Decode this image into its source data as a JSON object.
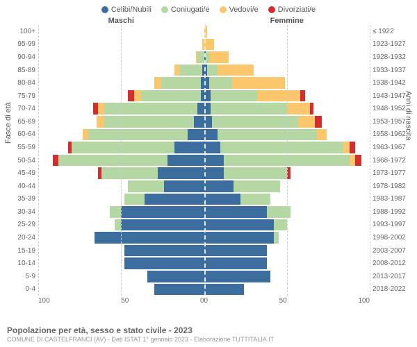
{
  "legend": [
    {
      "label": "Celibi/Nubili",
      "color": "#3b6e9e"
    },
    {
      "label": "Coniugati/e",
      "color": "#b5d7a4"
    },
    {
      "label": "Vedovi/e",
      "color": "#fcc66d"
    },
    {
      "label": "Divorziati/e",
      "color": "#d32d2d"
    }
  ],
  "header_male": "Maschi",
  "header_female": "Femmine",
  "y_left_title": "Fasce di età",
  "y_right_title": "Anni di nascita",
  "x_ticks_male": [
    "100",
    "50",
    "0"
  ],
  "x_ticks_female": [
    "0",
    "50",
    "100"
  ],
  "x_max": 100,
  "age_groups": [
    "100+",
    "95-99",
    "90-94",
    "85-89",
    "80-84",
    "75-79",
    "70-74",
    "65-69",
    "60-64",
    "55-59",
    "50-54",
    "45-49",
    "40-44",
    "35-39",
    "30-34",
    "25-29",
    "20-24",
    "15-19",
    "10-14",
    "5-9",
    "0-4"
  ],
  "birth_years": [
    "≤ 1922",
    "1923-1927",
    "1928-1932",
    "1933-1937",
    "1938-1942",
    "1943-1947",
    "1948-1952",
    "1953-1957",
    "1958-1962",
    "1963-1967",
    "1968-1972",
    "1973-1977",
    "1978-1982",
    "1983-1987",
    "1988-1992",
    "1993-1997",
    "1998-2002",
    "2003-2007",
    "2008-2012",
    "2013-2017",
    "2018-2022"
  ],
  "male": [
    {
      "celibi": 0,
      "coniugati": 0,
      "vedovi": 0,
      "divorziati": 0
    },
    {
      "celibi": 0,
      "coniugati": 0,
      "vedovi": 1,
      "divorziati": 0
    },
    {
      "celibi": 0,
      "coniugati": 4,
      "vedovi": 1,
      "divorziati": 0
    },
    {
      "celibi": 1,
      "coniugati": 14,
      "vedovi": 3,
      "divorziati": 0
    },
    {
      "celibi": 2,
      "coniugati": 24,
      "vedovi": 4,
      "divorziati": 0
    },
    {
      "celibi": 2,
      "coniugati": 36,
      "vedovi": 4,
      "divorziati": 4
    },
    {
      "celibi": 4,
      "coniugati": 56,
      "vedovi": 4,
      "divorziati": 3
    },
    {
      "celibi": 6,
      "coniugati": 54,
      "vedovi": 5,
      "divorziati": 0
    },
    {
      "celibi": 10,
      "coniugati": 60,
      "vedovi": 3,
      "divorziati": 0
    },
    {
      "celibi": 18,
      "coniugati": 62,
      "vedovi": 0,
      "divorziati": 2
    },
    {
      "celibi": 22,
      "coniugati": 66,
      "vedovi": 0,
      "divorziati": 3
    },
    {
      "celibi": 28,
      "coniugati": 34,
      "vedovi": 0,
      "divorziati": 2
    },
    {
      "celibi": 24,
      "coniugati": 22,
      "vedovi": 0,
      "divorziati": 0
    },
    {
      "celibi": 36,
      "coniugati": 12,
      "vedovi": 0,
      "divorziati": 0
    },
    {
      "celibi": 50,
      "coniugati": 7,
      "vedovi": 0,
      "divorziati": 0
    },
    {
      "celibi": 50,
      "coniugati": 4,
      "vedovi": 0,
      "divorziati": 0
    },
    {
      "celibi": 66,
      "coniugati": 0,
      "vedovi": 0,
      "divorziati": 0
    },
    {
      "celibi": 48,
      "coniugati": 0,
      "vedovi": 0,
      "divorziati": 0
    },
    {
      "celibi": 48,
      "coniugati": 0,
      "vedovi": 0,
      "divorziati": 0
    },
    {
      "celibi": 34,
      "coniugati": 0,
      "vedovi": 0,
      "divorziati": 0
    },
    {
      "celibi": 30,
      "coniugati": 0,
      "vedovi": 0,
      "divorziati": 0
    }
  ],
  "female": [
    {
      "celibi": 0,
      "coniugati": 0,
      "vedovi": 2,
      "divorziati": 0
    },
    {
      "celibi": 0,
      "coniugati": 0,
      "vedovi": 6,
      "divorziati": 0
    },
    {
      "celibi": 1,
      "coniugati": 2,
      "vedovi": 12,
      "divorziati": 0
    },
    {
      "celibi": 2,
      "coniugati": 6,
      "vedovi": 22,
      "divorziati": 0
    },
    {
      "celibi": 3,
      "coniugati": 14,
      "vedovi": 32,
      "divorziati": 0
    },
    {
      "celibi": 4,
      "coniugati": 28,
      "vedovi": 26,
      "divorziati": 3
    },
    {
      "celibi": 4,
      "coniugati": 46,
      "vedovi": 14,
      "divorziati": 2
    },
    {
      "celibi": 5,
      "coniugati": 52,
      "vedovi": 10,
      "divorziati": 4
    },
    {
      "celibi": 8,
      "coniugati": 60,
      "vedovi": 6,
      "divorziati": 0
    },
    {
      "celibi": 10,
      "coniugati": 74,
      "vedovi": 4,
      "divorziati": 3
    },
    {
      "celibi": 12,
      "coniugati": 76,
      "vedovi": 3,
      "divorziati": 4
    },
    {
      "celibi": 12,
      "coniugati": 38,
      "vedovi": 0,
      "divorziati": 2
    },
    {
      "celibi": 18,
      "coniugati": 28,
      "vedovi": 0,
      "divorziati": 0
    },
    {
      "celibi": 22,
      "coniugati": 18,
      "vedovi": 0,
      "divorziati": 0
    },
    {
      "celibi": 38,
      "coniugati": 14,
      "vedovi": 0,
      "divorziati": 0
    },
    {
      "celibi": 42,
      "coniugati": 8,
      "vedovi": 0,
      "divorziati": 0
    },
    {
      "celibi": 42,
      "coniugati": 3,
      "vedovi": 0,
      "divorziati": 0
    },
    {
      "celibi": 38,
      "coniugati": 0,
      "vedovi": 0,
      "divorziati": 0
    },
    {
      "celibi": 38,
      "coniugati": 0,
      "vedovi": 0,
      "divorziati": 0
    },
    {
      "celibi": 40,
      "coniugati": 0,
      "vedovi": 0,
      "divorziati": 0
    },
    {
      "celibi": 24,
      "coniugati": 0,
      "vedovi": 0,
      "divorziati": 0
    }
  ],
  "footer_title": "Popolazione per età, sesso e stato civile - 2023",
  "footer_sub": "COMUNE DI CASTELFRANCI (AV) - Dati ISTAT 1° gennaio 2023 - Elaborazione TUTTITALIA.IT",
  "colors": {
    "celibi": "#3b6e9e",
    "coniugati": "#b5d7a4",
    "vedovi": "#fcc66d",
    "divorziati": "#d32d2d",
    "grid": "#cccccc",
    "text": "#666666"
  }
}
